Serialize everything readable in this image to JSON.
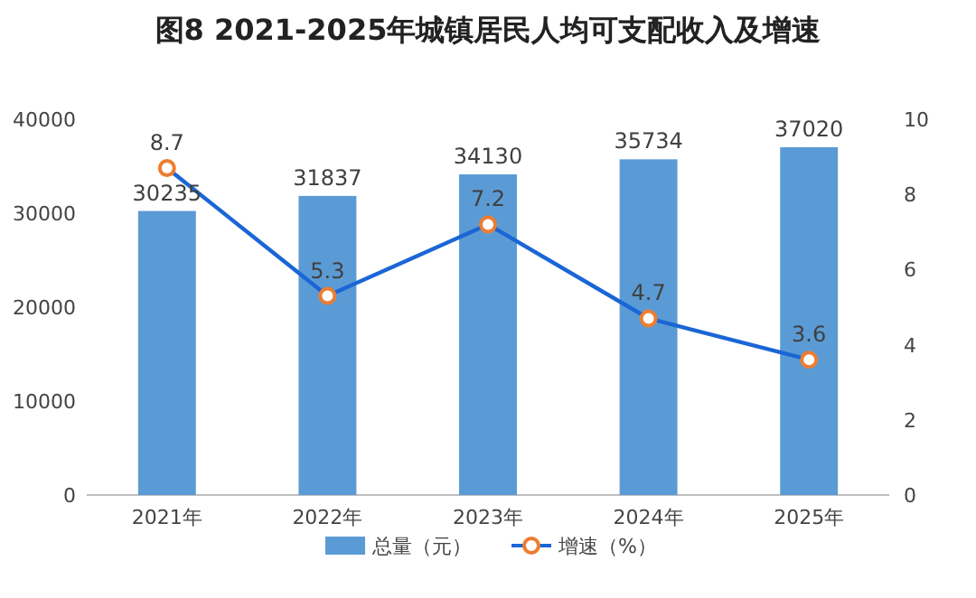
{
  "chart_data": {
    "type": "bar",
    "title": "图8 2021-2025年城镇居民人均可支配收入及增速",
    "categories": [
      "2021年",
      "2022年",
      "2023年",
      "2024年",
      "2025年"
    ],
    "series": [
      {
        "name": "总量（元）",
        "color": "#5b9bd5",
        "values": [
          30235,
          31837,
          34130,
          35734,
          37020
        ]
      },
      {
        "name": "增速（%）",
        "type": "line",
        "axis": "y2",
        "color": "#1a66d6",
        "marker": "circle",
        "values": [
          8.7,
          5.3,
          7.2,
          4.7,
          3.6
        ]
      }
    ],
    "ylim": [
      0,
      40000
    ],
    "yticks": [
      0,
      10000,
      20000,
      30000,
      40000
    ],
    "y2lim": [
      0,
      10
    ],
    "y2ticks": [
      0,
      2,
      4,
      6,
      8,
      10
    ],
    "data_labels": true,
    "legend": "bottom",
    "grid": false
  }
}
